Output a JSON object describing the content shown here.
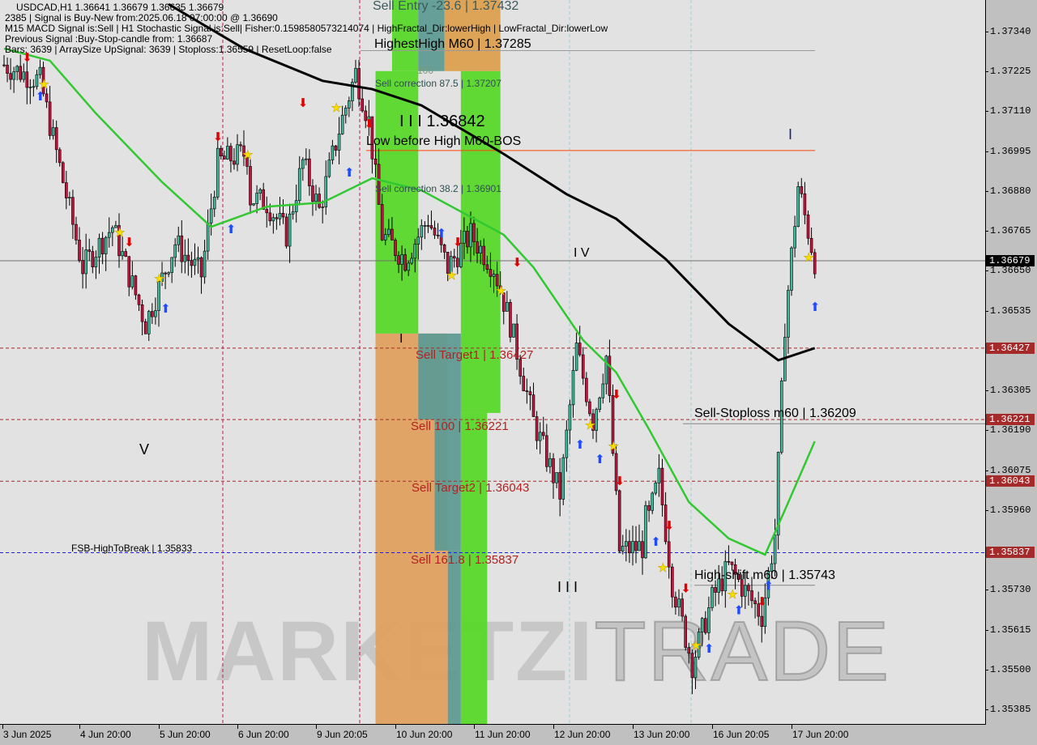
{
  "header": {
    "line1": "USDCAD,H1  1.36641 1.36679 1.36635 1.36679",
    "line2": "2385 | Signal is Buy-New from:2025.06.18 07:00:00 @ 1.36690",
    "line3": "M15 MACD Signal is:Sell | H1 Stochastic Signal is:Sell| Fisher:0.1598580573214074 | HighFractal_Dir:lowerHigh | LowFractal_Dir:lowerLow",
    "line4": "Previous Signal :Buy-Stop-candle from: 1.36687",
    "line5": "Bars: 3639 | ArraySize UpSignal: 3639 | Stoploss:1.36559 | ResetLoop:false"
  },
  "watermark": {
    "part1": "MARKETZI",
    "part2": "TRADE"
  },
  "annotations": {
    "sell_entry": "Sell Entry -23.6 | 1.37432",
    "highest_high": "HighestHigh   M60 | 1.37285",
    "hundred": "100",
    "sell_corr_875": "Sell correction 87.5 | 1.37207",
    "wave_iii_price": "I I I 1.36842",
    "low_before_high": "Low before High  M60-BOS",
    "sell_corr_382": "Sell correction 38.2 | 1.36901",
    "wave_iv": "I V",
    "wave_i_right": "I",
    "wave_i_left": "I",
    "sell_target1": "Sell Target1 | 1.36427",
    "sell_100": "Sell 100 | 1.36221",
    "sell_target2": "Sell Target2 | 1.36043",
    "sell_1618": "Sell 161.8 | 1.35837",
    "fsb": "FSB-HighToBreak | 1.35833",
    "wave_v": "V",
    "wave_iii": "I I I",
    "sell_stoploss": "Sell-Stoploss m60 | 1.36209",
    "high_shift": "High-shift m60 | 1.35743"
  },
  "chart_data": {
    "type": "candlestick",
    "symbol": "USDCAD",
    "timeframe": "H1",
    "ylim": [
      1.3534,
      1.3744
    ],
    "price_ticks": [
      "1.37340",
      "1.37225",
      "1.37110",
      "1.36995",
      "1.36880",
      "1.36765",
      "1.36650",
      "1.36535",
      "1.36305",
      "1.36190",
      "1.36075",
      "1.35960",
      "1.35730",
      "1.35615",
      "1.35500",
      "1.35385"
    ],
    "price_tags": [
      {
        "label": "1.36679",
        "color": "#000000"
      },
      {
        "label": "1.36427",
        "color": "#a52a2a"
      },
      {
        "label": "1.36221",
        "color": "#a52a2a"
      },
      {
        "label": "1.36043",
        "color": "#a52a2a"
      },
      {
        "label": "1.35837",
        "color": "#a52a2a"
      }
    ],
    "time_ticks": [
      "3 Jun 2025",
      "4 Jun 20:00",
      "5 Jun 20:00",
      "6 Jun 20:00",
      "9 Jun 20:05",
      "10 Jun 20:00",
      "11 Jun 20:00",
      "12 Jun 20:00",
      "13 Jun 20:00",
      "16 Jun 20:05",
      "17 Jun 20:00"
    ],
    "current_price": 1.36679,
    "close_path": [
      {
        "t": "2025-06-03 21:00",
        "p": 1.37244
      },
      {
        "t": "2025-06-04 08:00",
        "p": 1.37198
      },
      {
        "t": "2025-06-04 21:00",
        "p": 1.3666
      },
      {
        "t": "2025-06-05 06:00",
        "p": 1.36777
      },
      {
        "t": "2025-06-05 16:00",
        "p": 1.36497
      },
      {
        "t": "2025-06-06 01:00",
        "p": 1.3673
      },
      {
        "t": "2025-06-06 09:00",
        "p": 1.36637
      },
      {
        "t": "2025-06-06 14:00",
        "p": 1.36964
      },
      {
        "t": "2025-06-06 22:00",
        "p": 1.36987
      },
      {
        "t": "2025-06-09 05:00",
        "p": 1.36847
      },
      {
        "t": "2025-06-09 11:00",
        "p": 1.36754
      },
      {
        "t": "2025-06-09 16:00",
        "p": 1.36964
      },
      {
        "t": "2025-06-09 21:00",
        "p": 1.36824
      },
      {
        "t": "2025-06-10 03:00",
        "p": 1.37057
      },
      {
        "t": "2025-06-10 08:00",
        "p": 1.37221
      },
      {
        "t": "2025-06-10 12:00",
        "p": 1.37081
      },
      {
        "t": "2025-06-10 16:00",
        "p": 1.36754
      },
      {
        "t": "2025-06-10 23:00",
        "p": 1.36684
      },
      {
        "t": "2025-06-11 06:00",
        "p": 1.368
      },
      {
        "t": "2025-06-11 12:00",
        "p": 1.3666
      },
      {
        "t": "2025-06-11 19:00",
        "p": 1.36754
      },
      {
        "t": "2025-06-12 02:00",
        "p": 1.3666
      },
      {
        "t": "2025-06-12 07:00",
        "p": 1.36497
      },
      {
        "t": "2025-06-12 14:00",
        "p": 1.36216
      },
      {
        "t": "2025-06-12 22:00",
        "p": 1.36006
      },
      {
        "t": "2025-06-13 03:00",
        "p": 1.36427
      },
      {
        "t": "2025-06-13 08:00",
        "p": 1.36216
      },
      {
        "t": "2025-06-13 12:00",
        "p": 1.36403
      },
      {
        "t": "2025-06-13 16:00",
        "p": 1.35843
      },
      {
        "t": "2025-06-16 01:00",
        "p": 1.35936
      },
      {
        "t": "2025-06-16 04:00",
        "p": 1.36053
      },
      {
        "t": "2025-06-16 08:00",
        "p": 1.35749
      },
      {
        "t": "2025-06-16 14:00",
        "p": 1.35516
      },
      {
        "t": "2025-06-16 20:00",
        "p": 1.35703
      },
      {
        "t": "2025-06-17 01:00",
        "p": 1.35796
      },
      {
        "t": "2025-06-17 11:00",
        "p": 1.35656
      },
      {
        "t": "2025-06-17 15:00",
        "p": 1.3589
      },
      {
        "t": "2025-06-17 18:00",
        "p": 1.36497
      },
      {
        "t": "2025-06-17 22:00",
        "p": 1.36894
      },
      {
        "t": "2025-06-18 03:00",
        "p": 1.36679
      }
    ],
    "moving_averages": [
      {
        "color": "#000000",
        "points": [
          {
            "t": "2025-06-05 23:00",
            "p": 1.37419
          },
          {
            "t": "2025-06-06 22:00",
            "p": 1.37291
          },
          {
            "t": "2025-06-09 22:00",
            "p": 1.37198
          },
          {
            "t": "2025-06-10 13:00",
            "p": 1.37174
          },
          {
            "t": "2025-06-11 04:00",
            "p": 1.37127
          },
          {
            "t": "2025-06-12 05:00",
            "p": 1.36987
          },
          {
            "t": "2025-06-13 00:00",
            "p": 1.36871
          },
          {
            "t": "2025-06-13 15:00",
            "p": 1.368
          },
          {
            "t": "2025-06-16 06:00",
            "p": 1.36684
          },
          {
            "t": "2025-06-17 01:00",
            "p": 1.36497
          },
          {
            "t": "2025-06-17 16:00",
            "p": 1.36392
          },
          {
            "t": "2025-06-18 03:00",
            "p": 1.36427
          }
        ]
      },
      {
        "color": "#32c832",
        "points": [
          {
            "t": "2025-06-03 21:00",
            "p": 1.37291
          },
          {
            "t": "2025-06-04 11:00",
            "p": 1.37256
          },
          {
            "t": "2025-06-05 01:00",
            "p": 1.37104
          },
          {
            "t": "2025-06-05 21:00",
            "p": 1.36906
          },
          {
            "t": "2025-06-06 12:00",
            "p": 1.36777
          },
          {
            "t": "2025-06-09 05:00",
            "p": 1.36835
          },
          {
            "t": "2025-06-09 22:00",
            "p": 1.36847
          },
          {
            "t": "2025-06-10 13:00",
            "p": 1.36917
          },
          {
            "t": "2025-06-11 04:00",
            "p": 1.36882
          },
          {
            "t": "2025-06-12 05:00",
            "p": 1.36754
          },
          {
            "t": "2025-06-12 14:00",
            "p": 1.3666
          },
          {
            "t": "2025-06-13 05:00",
            "p": 1.3645
          },
          {
            "t": "2025-06-13 15:00",
            "p": 1.36357
          },
          {
            "t": "2025-06-16 01:00",
            "p": 1.36193
          },
          {
            "t": "2025-06-16 13:00",
            "p": 1.35983
          },
          {
            "t": "2025-06-17 01:00",
            "p": 1.35878
          },
          {
            "t": "2025-06-17 12:00",
            "p": 1.35831
          },
          {
            "t": "2025-06-17 18:00",
            "p": 1.3596
          },
          {
            "t": "2025-06-18 03:00",
            "p": 1.36158
          }
        ]
      }
    ],
    "levels": [
      {
        "price": 1.36427,
        "color": "#a52a2a",
        "style": "dashed"
      },
      {
        "price": 1.36221,
        "color": "#a52a2a",
        "style": "dashed"
      },
      {
        "price": 1.36043,
        "color": "#a52a2a",
        "style": "dashed"
      },
      {
        "price": 1.35837,
        "color": "#1f1fdc",
        "style": "dashed"
      },
      {
        "price": 1.36679,
        "color": "#707070",
        "style": "solid"
      }
    ],
    "zones": [
      {
        "from": "2025-06-10 19:00",
        "to": "2025-06-11 03:00",
        "low": 1.37226,
        "high": 1.3744,
        "color": "#5ad82a"
      },
      {
        "from": "2025-06-11 03:00",
        "to": "2025-06-11 11:00",
        "low": 1.37226,
        "high": 1.3744,
        "color": "#5f9b93"
      },
      {
        "from": "2025-06-11 11:00",
        "to": "2025-06-12 04:00",
        "low": 1.37226,
        "high": 1.3744,
        "color": "#dca050"
      },
      {
        "from": "2025-06-10 14:00",
        "to": "2025-06-11 03:00",
        "low": 1.36469,
        "high": 1.37226,
        "color": "#5ad82a"
      },
      {
        "from": "2025-06-11 16:00",
        "to": "2025-06-12 04:00",
        "low": 1.3624,
        "high": 1.37226,
        "color": "#5ad82a"
      },
      {
        "from": "2025-06-10 14:00",
        "to": "2025-06-11 12:00",
        "low": 1.3534,
        "high": 1.36469,
        "color": "#e0a060"
      },
      {
        "from": "2025-06-11 03:00",
        "to": "2025-06-11 16:00",
        "low": 1.36221,
        "high": 1.36469,
        "color": "#5f9b93"
      },
      {
        "from": "2025-06-11 08:00",
        "to": "2025-06-11 16:00",
        "low": 1.35843,
        "high": 1.36221,
        "color": "#5f9b93"
      },
      {
        "from": "2025-06-11 12:00",
        "to": "2025-06-11 16:00",
        "low": 1.3534,
        "high": 1.35843,
        "color": "#5f9b93"
      },
      {
        "from": "2025-06-11 16:00",
        "to": "2025-06-12 00:00",
        "low": 1.3534,
        "high": 1.3624,
        "color": "#5ad82a"
      }
    ],
    "signals": {
      "buy": [
        {
          "t": "2025-06-04 08:00",
          "p": 1.37155
        },
        {
          "t": "2025-06-05 22:00",
          "p": 1.36543
        },
        {
          "t": "2025-06-06 18:00",
          "p": 1.36772
        },
        {
          "t": "2025-06-10 06:00",
          "p": 1.36936
        },
        {
          "t": "2025-06-11 10:00",
          "p": 1.36761
        },
        {
          "t": "2025-06-13 04:00",
          "p": 1.36151
        },
        {
          "t": "2025-06-13 10:00",
          "p": 1.36109
        },
        {
          "t": "2025-06-16 03:00",
          "p": 1.35871
        },
        {
          "t": "2025-06-16 19:00",
          "p": 1.35562
        },
        {
          "t": "2025-06-17 04:00",
          "p": 1.35674
        },
        {
          "t": "2025-06-17 13:00",
          "p": 1.35744
        },
        {
          "t": "2025-06-18 03:00",
          "p": 1.36548
        }
      ],
      "sell": [
        {
          "t": "2025-06-04 04:00",
          "p": 1.37268
        },
        {
          "t": "2025-06-05 11:00",
          "p": 1.36735
        },
        {
          "t": "2025-06-06 14:00",
          "p": 1.37039
        },
        {
          "t": "2025-06-09 16:00",
          "p": 1.37137
        },
        {
          "t": "2025-06-10 12:00",
          "p": 1.37076
        },
        {
          "t": "2025-06-11 15:00",
          "p": 1.36735
        },
        {
          "t": "2025-06-12 09:00",
          "p": 1.36677
        },
        {
          "t": "2025-06-13 15:00",
          "p": 1.36296
        },
        {
          "t": "2025-06-13 16:00",
          "p": 1.36046
        },
        {
          "t": "2025-06-16 07:00",
          "p": 1.35917
        },
        {
          "t": "2025-06-16 12:00",
          "p": 1.35737
        },
        {
          "t": "2025-06-17 11:00",
          "p": 1.35698
        }
      ],
      "star": [
        {
          "t": "2025-06-04 09:00",
          "p": 1.3719
        },
        {
          "t": "2025-06-05 08:00",
          "p": 1.36763
        },
        {
          "t": "2025-06-05 20:00",
          "p": 1.3663
        },
        {
          "t": "2025-06-06 23:00",
          "p": 1.36987
        },
        {
          "t": "2025-06-10 02:00",
          "p": 1.37123
        },
        {
          "t": "2025-06-11 13:00",
          "p": 1.36639
        },
        {
          "t": "2025-06-12 04:00",
          "p": 1.36595
        },
        {
          "t": "2025-06-13 07:00",
          "p": 1.36207
        },
        {
          "t": "2025-06-13 14:00",
          "p": 1.36146
        },
        {
          "t": "2025-06-16 05:00",
          "p": 1.35796
        },
        {
          "t": "2025-06-16 15:00",
          "p": 1.35572
        },
        {
          "t": "2025-06-17 02:00",
          "p": 1.35719
        },
        {
          "t": "2025-06-18 01:00",
          "p": 1.36691
        }
      ]
    }
  }
}
